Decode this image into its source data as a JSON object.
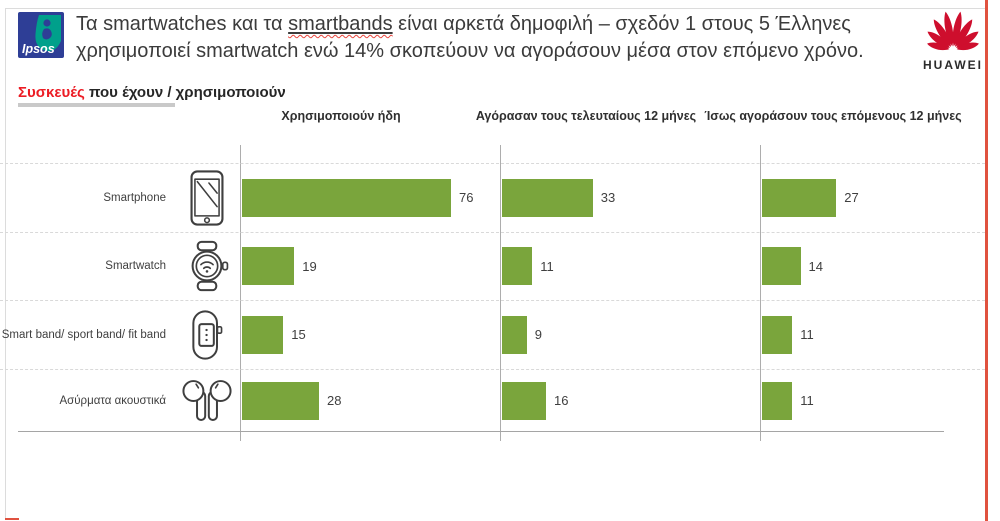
{
  "header": {
    "ipsos_logo_text": "Ipsos",
    "title_line1_pre": "Τα smartwatches και τα ",
    "title_line1_underlined": "smartbands",
    "title_line1_post": " είναι αρκετά δημοφιλή – σχεδόν 1 στους 5 Έλληνες",
    "title_line2": "χρησιμοποιεί smartwatch ενώ 14% σκοπεύουν να αγοράσουν μέσα στον επόμενο χρόνο.",
    "huawei_logo_text": "HUAWEI"
  },
  "subtitle": {
    "accent": "Συσκευές",
    "rest": " που έχουν / χρησιμοποιούν"
  },
  "chart_data": {
    "type": "bar",
    "orientation": "horizontal",
    "title": "Συσκευές που έχουν / χρησιμοποιούν",
    "categories": [
      "Smartphone",
      "Smartwatch",
      "Smart band/ sport band/ fit band",
      "Ασύρματα ακουστικά"
    ],
    "category_icons": [
      "smartphone-icon",
      "smartwatch-icon",
      "smart-band-icon",
      "wireless-earbuds-icon"
    ],
    "series": [
      {
        "name": "Χρησιμοποιούν ήδη",
        "values": [
          76,
          19,
          15,
          28
        ]
      },
      {
        "name": "Αγόρασαν τους τελευταίους 12 μήνες",
        "values": [
          33,
          11,
          9,
          16
        ]
      },
      {
        "name": "Ίσως αγοράσουν τους επόμενους 12 μήνες",
        "values": [
          27,
          14,
          11,
          11
        ]
      }
    ],
    "xlim": [
      0,
      95
    ],
    "unit": "percent",
    "data_labels": true,
    "legend_position": "column-headers",
    "grid": "row-separators"
  },
  "colors": {
    "bar_green": "#7aa53c",
    "accent_red": "#ec1c24",
    "huawei_red": "#ce0e2d",
    "ipsos_blue": "#2e3e96",
    "ipsos_teal": "#00a08b",
    "guide_line_red": "#e0523f",
    "text_dark": "#3b3b3b"
  }
}
